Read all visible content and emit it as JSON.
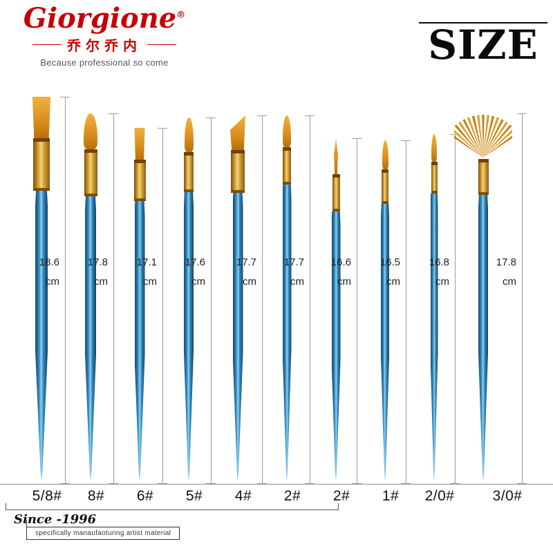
{
  "brand": {
    "logo_text": "Giorgione",
    "registered": "®",
    "chinese": "乔尔乔内",
    "tagline": "Because professional so come"
  },
  "header": {
    "title": "SIZE"
  },
  "footer": {
    "since": "Since -1996",
    "sub": "specifically manaufaoturing artist material"
  },
  "colors": {
    "brand_red": "#c40404",
    "handle_blue": "#2f87bb",
    "ferrule_gold": "#d9a93c",
    "bristle_amber": "#d88d1d"
  },
  "chart_data": {
    "type": "table",
    "title": "SIZE",
    "unit": "cm",
    "brushes": [
      {
        "label": "5/8#",
        "length_cm": 18.6,
        "tip": "flat"
      },
      {
        "label": "8#",
        "length_cm": 17.8,
        "tip": "round"
      },
      {
        "label": "6#",
        "length_cm": 17.1,
        "tip": "flat"
      },
      {
        "label": "5#",
        "length_cm": 17.6,
        "tip": "round"
      },
      {
        "label": "4#",
        "length_cm": 17.7,
        "tip": "angled"
      },
      {
        "label": "2#",
        "length_cm": 17.7,
        "tip": "round"
      },
      {
        "label": "2#",
        "length_cm": 16.6,
        "tip": "liner"
      },
      {
        "label": "1#",
        "length_cm": 16.5,
        "tip": "round"
      },
      {
        "label": "2/0#",
        "length_cm": 16.8,
        "tip": "round"
      },
      {
        "label": "3/0#",
        "length_cm": 17.8,
        "tip": "fan"
      }
    ]
  }
}
